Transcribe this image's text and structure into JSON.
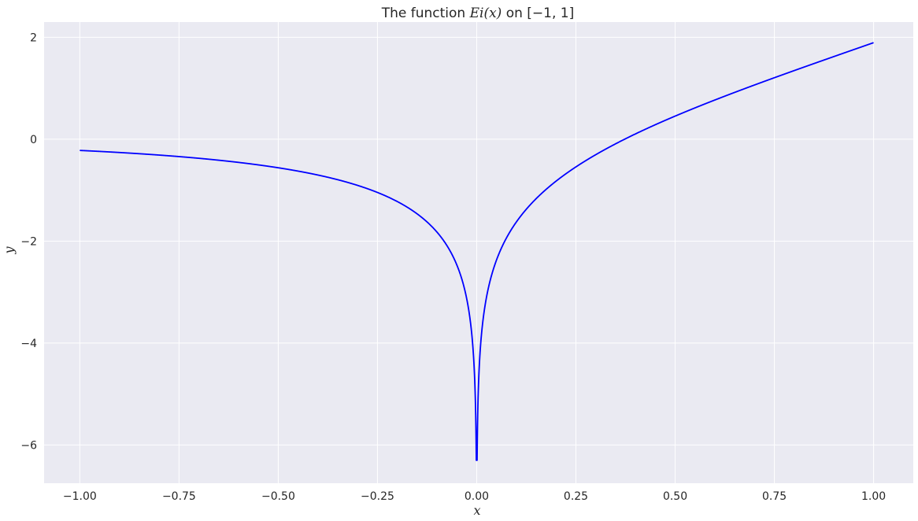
{
  "chart_data": {
    "type": "line",
    "title": {
      "prefix": "The function ",
      "math": "Ei(x)",
      "middle": " on ",
      "interval": "[−1, 1]"
    },
    "xlabel": "x",
    "ylabel": "y",
    "xlim": [
      -1.09,
      1.1
    ],
    "ylim": [
      -6.75,
      2.3
    ],
    "xticks": [
      -1.0,
      -0.75,
      -0.5,
      -0.25,
      0.0,
      0.25,
      0.5,
      0.75,
      1.0
    ],
    "xtick_labels": [
      "−1.00",
      "−0.75",
      "−0.50",
      "−0.25",
      "0.00",
      "0.25",
      "0.50",
      "0.75",
      "1.00"
    ],
    "yticks": [
      2,
      0,
      -2,
      -4,
      -6
    ],
    "ytick_labels": [
      "2",
      "0",
      "−2",
      "−4",
      "−6"
    ],
    "grid": true,
    "background": "#eaeaf2",
    "grid_color": "#ffffff",
    "series": [
      {
        "color": "#0000ff",
        "function": "Ei",
        "x_range": [
          -1.0,
          1.0
        ],
        "y_clip_min": -6.3
      }
    ]
  }
}
